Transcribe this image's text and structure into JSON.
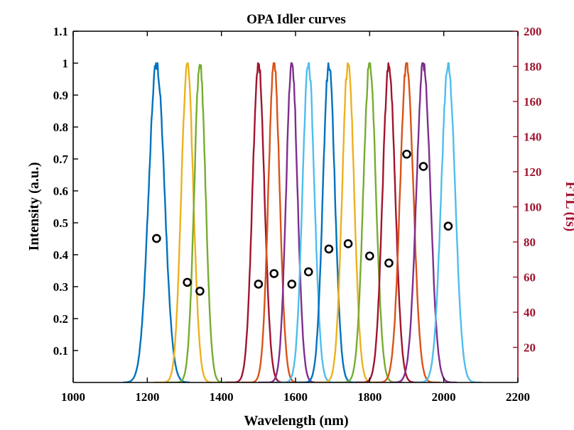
{
  "chart_data": {
    "type": "line",
    "title": "OPA  Idler  curves",
    "xlabel": "Wavelength (nm)",
    "ylabel": "Intensity (a.u.)",
    "y2label": "FTL (fs)",
    "xlim": [
      1000,
      2200
    ],
    "ylim": [
      0,
      1.1
    ],
    "y2lim": [
      0,
      200
    ],
    "xticks": [
      "1000",
      "1200",
      "1400",
      "1600",
      "1800",
      "2000",
      "2200"
    ],
    "yticks": [
      "0.1",
      "0.2",
      "0.3",
      "0.4",
      "0.5",
      "0.6",
      "0.7",
      "0.8",
      "0.9",
      "1",
      "1.1"
    ],
    "y2ticks": [
      "20",
      "40",
      "60",
      "80",
      "100",
      "120",
      "140",
      "160",
      "180",
      "200"
    ],
    "colors": {
      "right_axis": "#A2142F",
      "marker": "#000000"
    },
    "series": [
      {
        "color": "#0072BD",
        "center": 1225,
        "fwhm": 50,
        "ftl_fs": 82
      },
      {
        "color": "#EDB120",
        "center": 1308,
        "fwhm": 38,
        "ftl_fs": 57
      },
      {
        "color": "#77AC30",
        "center": 1342,
        "fwhm": 36,
        "ftl_fs": 52
      },
      {
        "color": "#A2142F",
        "center": 1500,
        "fwhm": 38,
        "ftl_fs": 56
      },
      {
        "color": "#D95319",
        "center": 1542,
        "fwhm": 36,
        "ftl_fs": 62
      },
      {
        "color": "#7E2F8E",
        "center": 1590,
        "fwhm": 36,
        "ftl_fs": 56
      },
      {
        "color": "#4DBEEE",
        "center": 1635,
        "fwhm": 38,
        "ftl_fs": 63
      },
      {
        "color": "#0072BD",
        "center": 1690,
        "fwhm": 38,
        "ftl_fs": 76
      },
      {
        "color": "#EDB120",
        "center": 1742,
        "fwhm": 38,
        "ftl_fs": 79
      },
      {
        "color": "#77AC30",
        "center": 1800,
        "fwhm": 40,
        "ftl_fs": 72
      },
      {
        "color": "#A2142F",
        "center": 1852,
        "fwhm": 40,
        "ftl_fs": 68
      },
      {
        "color": "#D95319",
        "center": 1900,
        "fwhm": 42,
        "ftl_fs": 130
      },
      {
        "color": "#7E2F8E",
        "center": 1945,
        "fwhm": 44,
        "ftl_fs": 123
      },
      {
        "color": "#4DBEEE",
        "center": 2012,
        "fwhm": 44,
        "ftl_fs": 89
      }
    ]
  }
}
